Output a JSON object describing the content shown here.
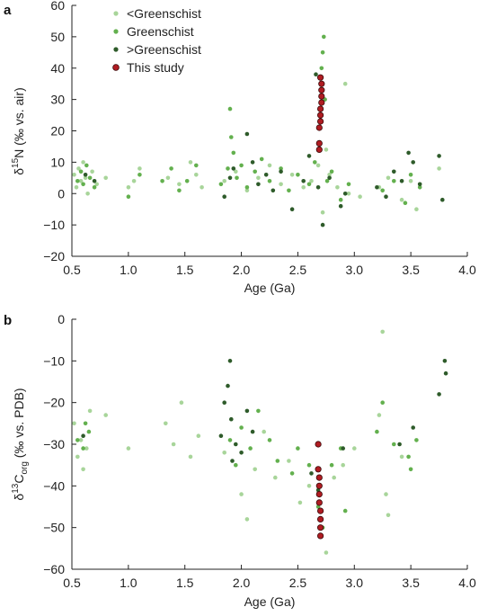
{
  "categories": [
    {
      "key": "low",
      "label": "<Greenschist",
      "color": "#a8d59a"
    },
    {
      "key": "mid",
      "label": "Greenschist",
      "color": "#63b04e"
    },
    {
      "key": "high",
      "label": ">Greenschist",
      "color": "#2e5b2a"
    },
    {
      "key": "study",
      "label": "This study",
      "color": "#b01c22"
    }
  ],
  "chart_data": [
    {
      "type": "scatter",
      "panel_label": "a",
      "title": "",
      "xlabel": "Age (Ga)",
      "ylabel_main": "δ",
      "ylabel_sup": "15",
      "ylabel_rest": "N (‰ vs. air)",
      "ylabel_sub": "",
      "ylabel_tail": "",
      "xlim": [
        0.5,
        4.0
      ],
      "ylim": [
        -20,
        60
      ],
      "x_ticks": [
        0.5,
        1.0,
        1.5,
        2.0,
        2.5,
        3.0,
        3.5,
        4.0
      ],
      "x_tick_labels": [
        "0.5",
        "1.0",
        "1.5",
        "2.0",
        "2.5",
        "3.0",
        "3.5",
        "4.0"
      ],
      "y_ticks": [
        -20,
        -10,
        0,
        10,
        20,
        30,
        40,
        50,
        60
      ],
      "y_tick_labels": [
        "−20",
        "−10",
        "0",
        "10",
        "20",
        "30",
        "40",
        "50",
        "60"
      ],
      "legend_position": "top-left",
      "grid": false,
      "series": [
        {
          "name": "<Greenschist",
          "points": [
            [
              0.52,
              6
            ],
            [
              0.54,
              2
            ],
            [
              0.56,
              8
            ],
            [
              0.58,
              4
            ],
            [
              0.6,
              10
            ],
            [
              0.62,
              5
            ],
            [
              0.64,
              0
            ],
            [
              0.68,
              7
            ],
            [
              0.72,
              3
            ],
            [
              0.8,
              5
            ],
            [
              1.0,
              2
            ],
            [
              1.05,
              4
            ],
            [
              1.1,
              8
            ],
            [
              1.35,
              5
            ],
            [
              1.45,
              3
            ],
            [
              1.55,
              10
            ],
            [
              1.6,
              6
            ],
            [
              1.65,
              2
            ],
            [
              1.85,
              4
            ],
            [
              1.95,
              7
            ],
            [
              2.05,
              1
            ],
            [
              2.15,
              5
            ],
            [
              2.25,
              9
            ],
            [
              2.35,
              3
            ],
            [
              2.45,
              6
            ],
            [
              2.55,
              2
            ],
            [
              2.62,
              4
            ],
            [
              2.68,
              9
            ],
            [
              2.72,
              -6
            ],
            [
              2.75,
              14
            ],
            [
              2.78,
              6
            ],
            [
              2.85,
              2
            ],
            [
              2.92,
              35
            ],
            [
              2.95,
              0
            ],
            [
              3.05,
              -1
            ],
            [
              3.22,
              2
            ],
            [
              3.3,
              5
            ],
            [
              3.42,
              -2
            ],
            [
              3.5,
              4
            ],
            [
              3.55,
              -5
            ],
            [
              3.75,
              8
            ]
          ]
        },
        {
          "name": "Greenschist",
          "points": [
            [
              0.55,
              4
            ],
            [
              0.58,
              7
            ],
            [
              0.6,
              3
            ],
            [
              0.63,
              9
            ],
            [
              0.66,
              5
            ],
            [
              0.7,
              2
            ],
            [
              1.0,
              -1
            ],
            [
              1.1,
              6
            ],
            [
              1.3,
              4
            ],
            [
              1.38,
              8
            ],
            [
              1.45,
              1
            ],
            [
              1.52,
              4
            ],
            [
              1.6,
              9
            ],
            [
              1.82,
              3
            ],
            [
              1.88,
              8
            ],
            [
              1.9,
              27
            ],
            [
              1.91,
              18
            ],
            [
              1.93,
              13
            ],
            [
              1.96,
              5
            ],
            [
              2.0,
              9
            ],
            [
              2.05,
              2
            ],
            [
              2.12,
              7
            ],
            [
              2.18,
              11
            ],
            [
              2.25,
              4
            ],
            [
              2.35,
              8
            ],
            [
              2.42,
              1
            ],
            [
              2.5,
              6
            ],
            [
              2.6,
              3
            ],
            [
              2.65,
              10
            ],
            [
              2.7,
              25
            ],
            [
              2.71,
              40
            ],
            [
              2.72,
              45
            ],
            [
              2.73,
              50
            ],
            [
              2.74,
              30
            ],
            [
              2.76,
              4
            ],
            [
              2.8,
              7
            ],
            [
              2.88,
              -2
            ],
            [
              2.95,
              3
            ],
            [
              3.25,
              1
            ],
            [
              3.35,
              4
            ],
            [
              3.45,
              -3
            ],
            [
              3.5,
              6
            ],
            [
              3.58,
              2
            ]
          ]
        },
        {
          "name": ">Greenschist",
          "points": [
            [
              0.62,
              6
            ],
            [
              0.7,
              4
            ],
            [
              1.85,
              -1
            ],
            [
              1.9,
              5
            ],
            [
              1.93,
              8
            ],
            [
              2.05,
              19
            ],
            [
              2.1,
              10
            ],
            [
              2.15,
              3
            ],
            [
              2.22,
              6
            ],
            [
              2.28,
              1
            ],
            [
              2.35,
              7
            ],
            [
              2.45,
              -5
            ],
            [
              2.55,
              4
            ],
            [
              2.6,
              12
            ],
            [
              2.66,
              38
            ],
            [
              2.68,
              2
            ],
            [
              2.72,
              -10
            ],
            [
              2.78,
              5
            ],
            [
              2.88,
              -4
            ],
            [
              2.92,
              0
            ],
            [
              3.2,
              2
            ],
            [
              3.28,
              -1
            ],
            [
              3.35,
              7
            ],
            [
              3.42,
              4
            ],
            [
              3.48,
              13
            ],
            [
              3.52,
              10
            ],
            [
              3.58,
              3
            ],
            [
              3.75,
              12
            ],
            [
              3.78,
              -2
            ]
          ]
        },
        {
          "name": "This study",
          "points": [
            [
              2.69,
              14
            ],
            [
              2.69,
              16
            ],
            [
              2.69,
              21
            ],
            [
              2.7,
              23
            ],
            [
              2.7,
              25
            ],
            [
              2.7,
              27
            ],
            [
              2.71,
              29
            ],
            [
              2.71,
              31
            ],
            [
              2.71,
              33
            ],
            [
              2.71,
              35
            ],
            [
              2.7,
              37
            ]
          ]
        }
      ]
    },
    {
      "type": "scatter",
      "panel_label": "b",
      "title": "",
      "xlabel": "Age (Ga)",
      "ylabel_main": "δ",
      "ylabel_sup": "13",
      "ylabel_rest": "C",
      "ylabel_sub": "org",
      "ylabel_tail": " (‰ vs. PDB)",
      "xlim": [
        0.5,
        4.0
      ],
      "ylim": [
        -60,
        0
      ],
      "x_ticks": [
        0.5,
        1.0,
        1.5,
        2.0,
        2.5,
        3.0,
        3.5,
        4.0
      ],
      "x_tick_labels": [
        "0.5",
        "1.0",
        "1.5",
        "2.0",
        "2.5",
        "3.0",
        "3.5",
        "4.0"
      ],
      "y_ticks": [
        -60,
        -50,
        -40,
        -30,
        -20,
        -10,
        0
      ],
      "y_tick_labels": [
        "−60",
        "−50",
        "−40",
        "−30",
        "−20",
        "−10",
        "0"
      ],
      "legend_position": "none",
      "grid": false,
      "series": [
        {
          "name": "<Greenschist",
          "points": [
            [
              0.52,
              -25
            ],
            [
              0.55,
              -33
            ],
            [
              0.58,
              -29
            ],
            [
              0.6,
              -36
            ],
            [
              0.63,
              -31
            ],
            [
              0.66,
              -22
            ],
            [
              0.8,
              -23
            ],
            [
              1.0,
              -31
            ],
            [
              1.33,
              -25
            ],
            [
              1.4,
              -30
            ],
            [
              1.47,
              -20
            ],
            [
              1.55,
              -33
            ],
            [
              1.62,
              -28
            ],
            [
              1.85,
              -32
            ],
            [
              2.0,
              -42
            ],
            [
              2.05,
              -48
            ],
            [
              2.12,
              -36
            ],
            [
              2.2,
              -27
            ],
            [
              2.3,
              -38
            ],
            [
              2.42,
              -34
            ],
            [
              2.52,
              -44
            ],
            [
              2.6,
              -40
            ],
            [
              2.7,
              -52
            ],
            [
              2.75,
              -56
            ],
            [
              2.82,
              -38
            ],
            [
              2.9,
              -35
            ],
            [
              3.0,
              -31
            ],
            [
              3.22,
              -23
            ],
            [
              3.25,
              -3
            ],
            [
              3.28,
              -42
            ],
            [
              3.3,
              -47
            ],
            [
              3.42,
              -33
            ]
          ]
        },
        {
          "name": "Greenschist",
          "points": [
            [
              0.55,
              -29
            ],
            [
              0.6,
              -31
            ],
            [
              0.62,
              -25
            ],
            [
              0.65,
              -27
            ],
            [
              1.9,
              -29
            ],
            [
              1.95,
              -35
            ],
            [
              2.0,
              -26
            ],
            [
              2.08,
              -31
            ],
            [
              2.15,
              -22
            ],
            [
              2.25,
              -29
            ],
            [
              2.32,
              -34
            ],
            [
              2.45,
              -37
            ],
            [
              2.5,
              -31
            ],
            [
              2.6,
              -35
            ],
            [
              2.68,
              -45
            ],
            [
              2.72,
              -50
            ],
            [
              2.8,
              -35
            ],
            [
              2.88,
              -31
            ],
            [
              2.92,
              -46
            ],
            [
              3.2,
              -27
            ],
            [
              3.25,
              -20
            ],
            [
              3.35,
              -30
            ],
            [
              3.48,
              -33
            ],
            [
              3.5,
              -36
            ],
            [
              3.55,
              -29
            ]
          ]
        },
        {
          "name": ">Greenschist",
          "points": [
            [
              0.6,
              -28
            ],
            [
              1.82,
              -28
            ],
            [
              1.85,
              -20
            ],
            [
              1.88,
              -16
            ],
            [
              1.9,
              -10
            ],
            [
              1.91,
              -24
            ],
            [
              1.92,
              -34
            ],
            [
              1.95,
              -30
            ],
            [
              2.0,
              -32
            ],
            [
              2.05,
              -22
            ],
            [
              2.1,
              -27
            ],
            [
              2.62,
              -37
            ],
            [
              2.68,
              -41
            ],
            [
              2.9,
              -31
            ],
            [
              3.4,
              -30
            ],
            [
              3.52,
              -26
            ],
            [
              3.75,
              -18
            ],
            [
              3.8,
              -10
            ],
            [
              3.81,
              -13
            ]
          ]
        },
        {
          "name": "This study",
          "points": [
            [
              2.68,
              -30
            ],
            [
              2.68,
              -36
            ],
            [
              2.69,
              -38
            ],
            [
              2.69,
              -40
            ],
            [
              2.69,
              -42
            ],
            [
              2.69,
              -44
            ],
            [
              2.7,
              -46
            ],
            [
              2.7,
              -48
            ],
            [
              2.7,
              -50
            ],
            [
              2.7,
              -52
            ]
          ]
        }
      ]
    }
  ]
}
